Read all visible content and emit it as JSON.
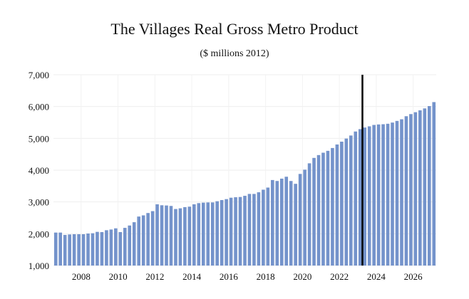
{
  "chart_data": {
    "type": "bar",
    "title": "The Villages Real Gross Metro Product",
    "subtitle": "($ millions 2012)",
    "xlabel": "",
    "ylabel": "",
    "ylim": [
      1000,
      7000
    ],
    "y_ticks": [
      "1,000",
      "2,000",
      "3,000",
      "4,000",
      "5,000",
      "6,000",
      "7,000"
    ],
    "y_tick_values": [
      1000,
      2000,
      3000,
      4000,
      5000,
      6000,
      7000
    ],
    "x_ticks": [
      "2008",
      "2010",
      "2012",
      "2014",
      "2016",
      "2018",
      "2020",
      "2022",
      "2024",
      "2026"
    ],
    "start_year": 2007,
    "frequency": "quarterly",
    "forecast_marker_index": 66,
    "bar_color": "#7493CB",
    "values": [
      2037,
      2037,
      1963,
      1978,
      1985,
      1985,
      1985,
      2007,
      2015,
      2059,
      2052,
      2111,
      2133,
      2170,
      2052,
      2185,
      2259,
      2363,
      2541,
      2578,
      2652,
      2711,
      2926,
      2896,
      2889,
      2874,
      2778,
      2800,
      2837,
      2852,
      2926,
      2963,
      2978,
      2985,
      2985,
      3022,
      3059,
      3089,
      3133,
      3148,
      3156,
      3193,
      3252,
      3252,
      3304,
      3385,
      3452,
      3689,
      3659,
      3733,
      3793,
      3659,
      3570,
      3881,
      4015,
      4215,
      4385,
      4474,
      4548,
      4607,
      4696,
      4807,
      4896,
      4993,
      5089,
      5215,
      5289,
      5341,
      5378,
      5422,
      5437,
      5444,
      5459,
      5496,
      5548,
      5600,
      5696,
      5763,
      5822,
      5881,
      5941,
      6015,
      6140
    ]
  }
}
